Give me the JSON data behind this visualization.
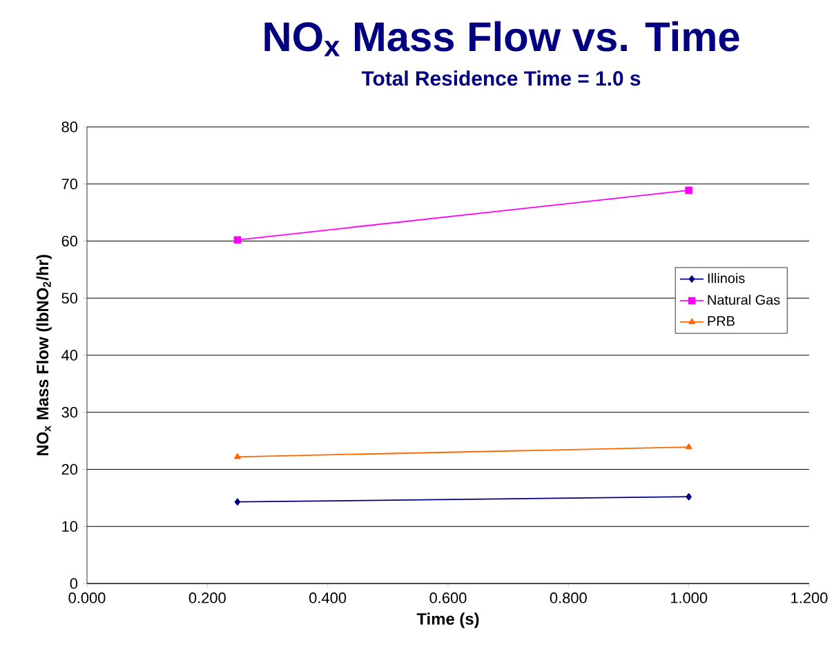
{
  "chart_data": {
    "type": "line",
    "title": "NO$_{x}$ Mass Flow vs. Time",
    "subtitle": "Total Residence Time = 1.0 s",
    "xlabel": "Time (s)",
    "ylabel": "NO$_{x}$ Mass Flow (lbNO$_{2}$/hr)",
    "xlim": [
      0,
      1.2
    ],
    "ylim": [
      0,
      80
    ],
    "xticks": [
      {
        "value": 0,
        "label": "0.000"
      },
      {
        "value": 0.2,
        "label": "0.200"
      },
      {
        "value": 0.4,
        "label": "0.400"
      },
      {
        "value": 0.6,
        "label": "0.600"
      },
      {
        "value": 0.8,
        "label": "0.800"
      },
      {
        "value": 1.0,
        "label": "1.000"
      },
      {
        "value": 1.2,
        "label": "1.200"
      }
    ],
    "yticks": [
      0,
      10,
      20,
      30,
      40,
      50,
      60,
      70,
      80
    ],
    "grid": "y",
    "legend": "right",
    "x": [
      0.25,
      1.0
    ],
    "series": [
      {
        "name": "Illinois",
        "color": "#000080",
        "marker": "diamond",
        "values": [
          14.3,
          15.2
        ]
      },
      {
        "name": "Natural Gas",
        "color": "#ff00ff",
        "marker": "square",
        "values": [
          60.2,
          68.9
        ]
      },
      {
        "name": "PRB",
        "color": "#ff6600",
        "marker": "triangle",
        "values": [
          22.2,
          23.9
        ]
      }
    ]
  }
}
